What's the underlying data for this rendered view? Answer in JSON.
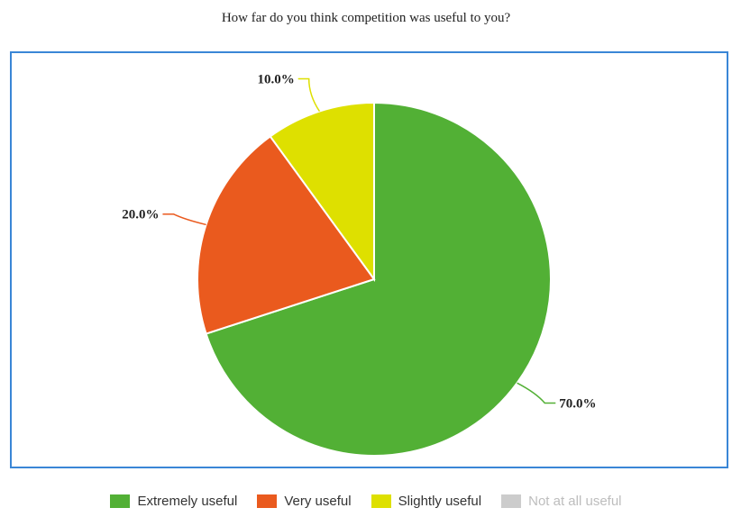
{
  "chart_data": {
    "type": "pie",
    "title": "How far do you think competition was useful to you?",
    "slices": [
      {
        "name": "Extremely useful",
        "value": 70.0,
        "label": "70.0%",
        "color": "#52b035"
      },
      {
        "name": "Very useful",
        "value": 20.0,
        "label": "20.0%",
        "color": "#ea5a1e"
      },
      {
        "name": "Slightly useful",
        "value": 10.0,
        "label": "10.0%",
        "color": "#dee000"
      },
      {
        "name": "Not at all useful",
        "value": 0,
        "label": "",
        "color": "#cccccc"
      }
    ],
    "legend": {
      "position": "bottom",
      "items": [
        {
          "label": "Extremely useful",
          "color": "#52b035",
          "visible": true
        },
        {
          "label": "Very useful",
          "color": "#ea5a1e",
          "visible": true
        },
        {
          "label": "Slightly useful",
          "color": "#dee000",
          "visible": true
        },
        {
          "label": "Not at all useful",
          "color": "#cccccc",
          "visible": false
        }
      ]
    },
    "frame_color": "#3a86d6"
  }
}
